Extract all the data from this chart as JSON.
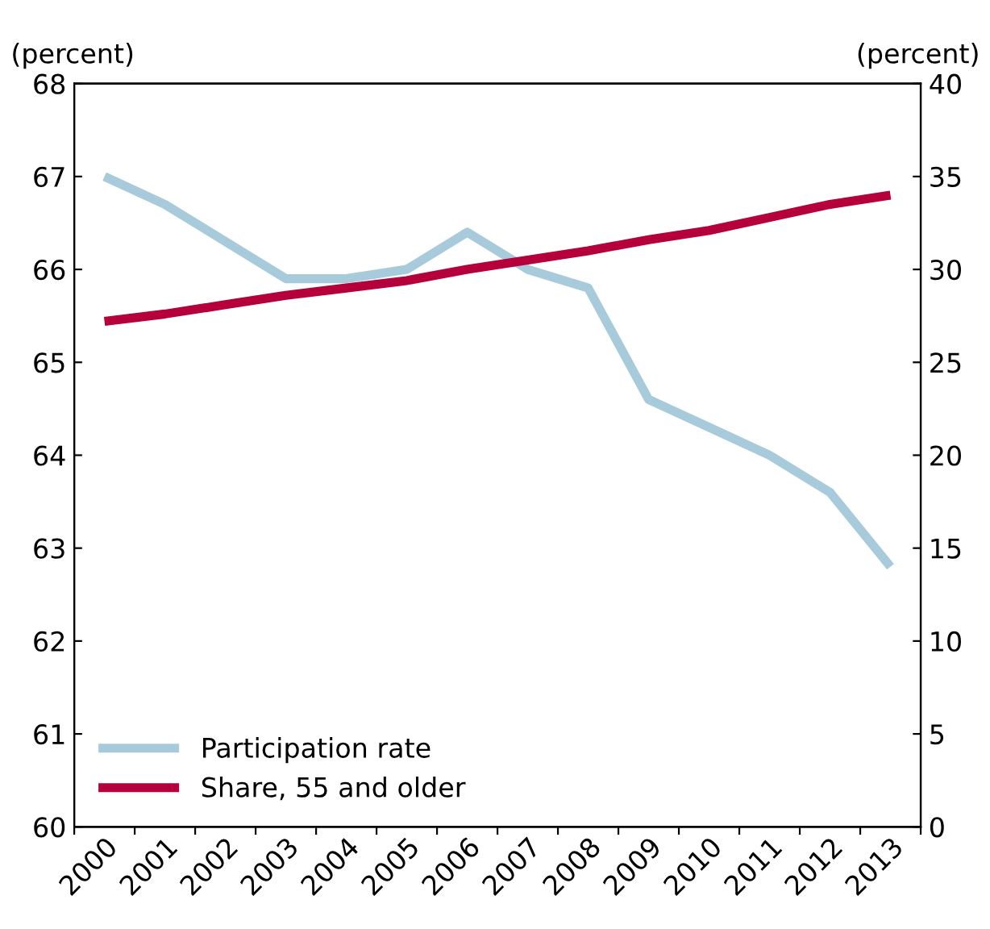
{
  "chart_data": {
    "type": "line",
    "categories": [
      "2000",
      "2001",
      "2002",
      "2003",
      "2004",
      "2005",
      "2006",
      "2007",
      "2008",
      "2009",
      "2010",
      "2011",
      "2012",
      "2013"
    ],
    "series": [
      {
        "name": "Participation rate",
        "color": "#a8cbdc",
        "values": [
          67.0,
          66.7,
          66.3,
          65.9,
          65.9,
          66.0,
          66.4,
          66.0,
          65.8,
          64.6,
          64.3,
          64.0,
          63.6,
          62.8
        ]
      },
      {
        "name": "Share, 55 and older",
        "color": "#b5003c",
        "axis": "y2",
        "values": [
          27.2,
          27.6,
          28.1,
          28.6,
          29.0,
          29.4,
          30.0,
          30.5,
          31.0,
          31.6,
          32.1,
          32.8,
          33.5,
          34.0
        ]
      }
    ],
    "ylabel": "(percent)",
    "y2label": "(percent)",
    "ylim": [
      60,
      68
    ],
    "yticks": [
      60,
      61,
      62,
      63,
      64,
      65,
      66,
      67,
      68
    ],
    "y2lim": [
      0,
      40
    ],
    "y2ticks": [
      0,
      5,
      10,
      15,
      20,
      25,
      30,
      35,
      40
    ],
    "legend": "bottom left",
    "grid": false,
    "line_style": "solid",
    "marker": "none"
  }
}
